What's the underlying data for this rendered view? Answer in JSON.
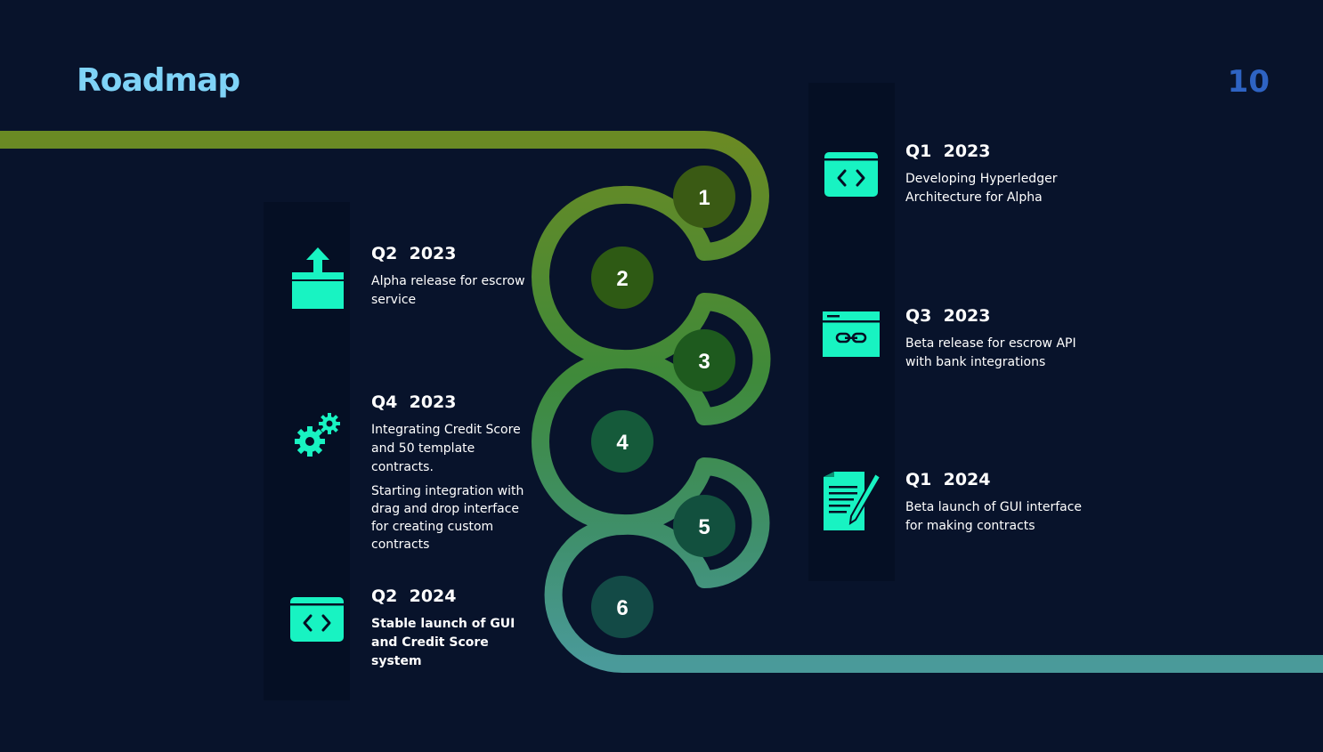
{
  "header": {
    "title": "Roadmap",
    "page_number": "10"
  },
  "colors": {
    "background": "#08132b",
    "strip": "#050f24",
    "accent": "#18f3c2",
    "path_start": "#6a8a24",
    "path_end": "#4a9a9a"
  },
  "steps": [
    {
      "number": "1",
      "fill": "#3a5a14"
    },
    {
      "number": "2",
      "fill": "#2e5a14"
    },
    {
      "number": "3",
      "fill": "#1e5a1e"
    },
    {
      "number": "4",
      "fill": "#155a3a"
    },
    {
      "number": "5",
      "fill": "#12503e"
    },
    {
      "number": "6",
      "fill": "#134a46"
    }
  ],
  "milestones": {
    "q1_2023": {
      "period": "Q1  2023",
      "desc": "Developing Hyperledger Architecture for Alpha",
      "icon": "code-window-icon"
    },
    "q2_2023": {
      "period": "Q2  2023",
      "desc": "Alpha release for escrow service",
      "icon": "upload-box-icon"
    },
    "q3_2023": {
      "period": "Q3  2023",
      "desc": "Beta release for escrow API with bank integrations",
      "icon": "link-window-icon"
    },
    "q4_2023": {
      "period": "Q4  2023",
      "desc": "Integrating Credit Score and 50 template contracts.",
      "desc2": "Starting integration  with drag and drop interface for creating custom contracts",
      "icon": "gears-icon"
    },
    "q1_2024": {
      "period": "Q1  2024",
      "desc": "Beta launch of GUI interface for making contracts",
      "icon": "document-pen-icon"
    },
    "q2_2024": {
      "period": "Q2  2024",
      "desc": "Stable launch of GUI and Credit Score system",
      "icon": "code-window-icon"
    }
  }
}
